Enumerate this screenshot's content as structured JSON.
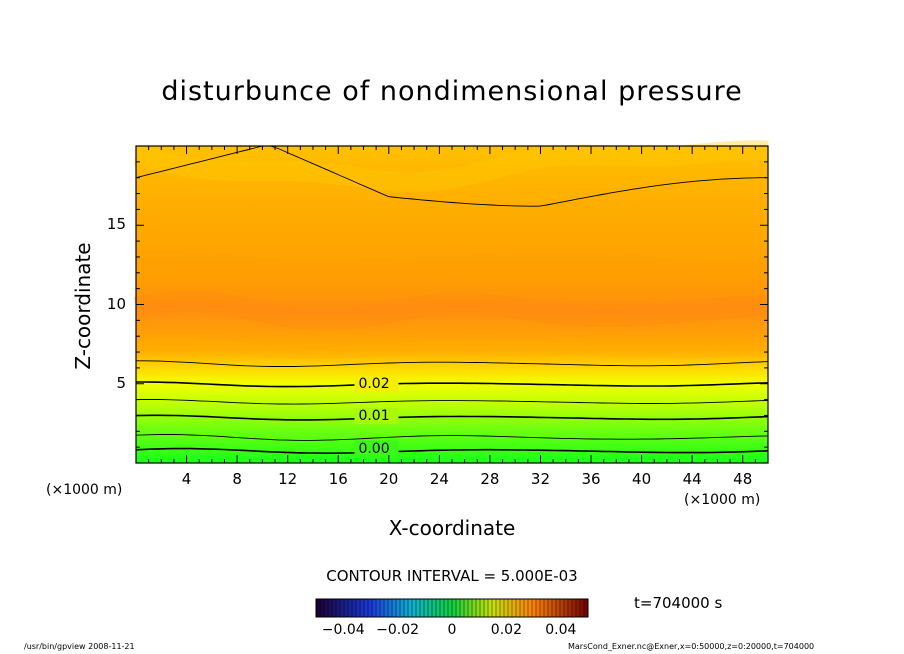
{
  "chart_data": {
    "type": "heatmap",
    "title": "disturbunce of nondimensional pressure",
    "xlabel": "X-coordinate",
    "ylabel": "Z-coordinate",
    "x_unit_left": "(×1000 m)",
    "x_unit_right": "(×1000 m)",
    "xlim": [
      0,
      50
    ],
    "ylim": [
      0,
      20
    ],
    "xticks": [
      4,
      8,
      12,
      16,
      20,
      24,
      28,
      32,
      36,
      40,
      44,
      48
    ],
    "yticks": [
      5,
      10,
      15
    ],
    "contour_labels": [
      {
        "text": "0.02",
        "x": 17.6,
        "y": 4.9
      },
      {
        "text": "0.01",
        "x": 17.6,
        "y": 2.9
      },
      {
        "text": "0.00",
        "x": 17.6,
        "y": 0.85
      }
    ],
    "contour_interval": "CONTOUR INTERVAL = 5.000E-03",
    "time_label": "t=704000 s",
    "colorbar": {
      "ticks": [
        "−0.04",
        "−0.02",
        "0",
        "0.02",
        "0.04"
      ],
      "tick_values": [
        -0.04,
        -0.02,
        0,
        0.02,
        0.04
      ],
      "range": [
        -0.05,
        0.05
      ]
    },
    "footer_left": "/usr/bin/gpview   2008-11-21",
    "footer_right": "MarsCond_Exner.nc@Exner,x=0:50000,z=0:20000,t=704000"
  }
}
